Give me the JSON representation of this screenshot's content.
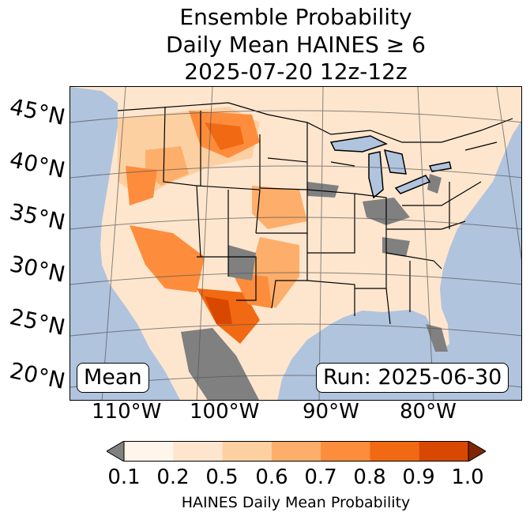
{
  "title": {
    "line1": "Ensemble Probability",
    "line2": "Daily Mean HAINES ≥ 6",
    "line3": "2025-07-20 12z-12z"
  },
  "map": {
    "latitude_labels": [
      "45°N",
      "40°N",
      "35°N",
      "30°N",
      "25°N",
      "20°N"
    ],
    "longitude_labels": [
      "110°W",
      "100°W",
      "90°W",
      "80°W"
    ],
    "stat_box": "Mean",
    "run_box": "Run: 2025-06-30",
    "colors": {
      "ocean": "#b0c4de",
      "missing": "#808080",
      "lakes": "#b0c4de"
    }
  },
  "colorbar": {
    "label": "HAINES Daily Mean Probability",
    "ticks": [
      "0.1",
      "0.2",
      "0.5",
      "0.6",
      "0.7",
      "0.8",
      "0.9",
      "1.0"
    ],
    "under_color": "#808080",
    "over_color": "#7f2704",
    "bins": [
      "#fff5eb",
      "#fee6ce",
      "#fdd0a2",
      "#fdae6b",
      "#fd8d3c",
      "#f16913",
      "#d94801"
    ]
  }
}
